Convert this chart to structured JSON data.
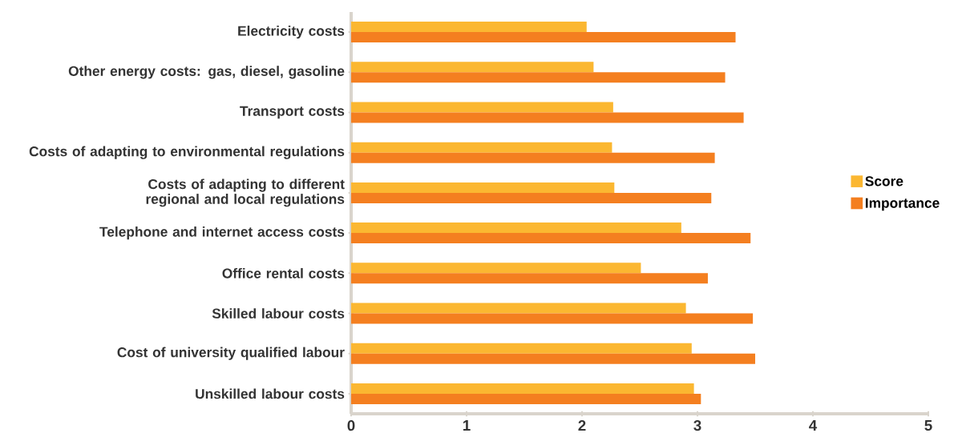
{
  "chart_data": {
    "type": "bar",
    "orientation": "horizontal",
    "categories": [
      "Electricity costs",
      "Other energy costs: gas, diesel, gasoline",
      "Transport costs",
      "Costs of adapting to environmental regulations",
      "Costs of adapting to different regional and local regulations",
      "Telephone and internet access costs",
      "Office rental costs",
      "Skilled labour costs",
      "Cost of university qualified labour",
      "Unskilled labour costs"
    ],
    "series": [
      {
        "name": "Score",
        "color": "#fbb731",
        "values": [
          2.04,
          2.1,
          2.27,
          2.26,
          2.28,
          2.86,
          2.51,
          2.9,
          2.95,
          2.97
        ]
      },
      {
        "name": "Importance",
        "color": "#f47f20",
        "values": [
          3.33,
          3.24,
          3.4,
          3.15,
          3.12,
          3.46,
          3.09,
          3.48,
          3.5,
          3.03
        ]
      }
    ],
    "xlim": [
      0,
      5
    ],
    "xticks": [
      0,
      1,
      2,
      3,
      4,
      5
    ],
    "legend": "right",
    "grid": false
  }
}
